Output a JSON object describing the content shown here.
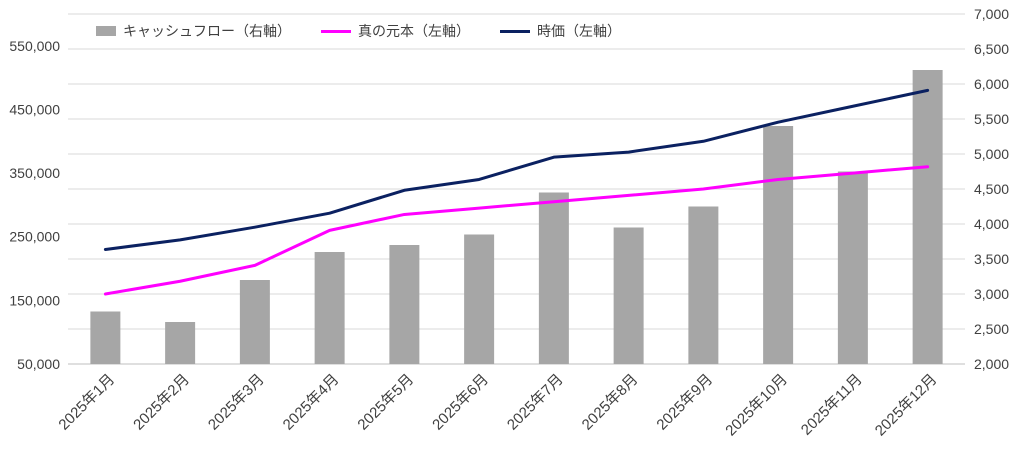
{
  "chart_data": {
    "type": "combo",
    "title": "",
    "categories": [
      "2025年1月",
      "2025年2月",
      "2025年3月",
      "2025年4月",
      "2025年5月",
      "2025年6月",
      "2025年7月",
      "2025年8月",
      "2025年9月",
      "2025年10月",
      "2025年11月",
      "2025年12月"
    ],
    "series": [
      {
        "name": "キャッシュフロー（右軸）",
        "type": "bar",
        "axis": "right",
        "color": "#a6a6a6",
        "values": [
          2750,
          2600,
          3200,
          3600,
          3700,
          3850,
          4450,
          3950,
          4250,
          5400,
          4750,
          6200
        ]
      },
      {
        "name": "真の元本（左軸）",
        "type": "line",
        "axis": "left",
        "color": "#ff00ff",
        "values": [
          160000,
          180000,
          205000,
          260000,
          285000,
          295000,
          305000,
          315000,
          325000,
          340000,
          350000,
          360000
        ]
      },
      {
        "name": "時価（左軸）",
        "type": "line",
        "axis": "left",
        "color": "#0b2161",
        "values": [
          230000,
          245000,
          265000,
          287000,
          323000,
          340000,
          375000,
          383000,
          400000,
          430000,
          455000,
          480000
        ]
      }
    ],
    "left_axis": {
      "min": 50000,
      "max": 600000,
      "tick_values": [
        550000,
        450000,
        350000,
        250000,
        150000,
        50000
      ],
      "tick_labels": [
        "550,000",
        "450,000",
        "350,000",
        "250,000",
        "150,000",
        "50,000"
      ]
    },
    "right_axis": {
      "min": 2000,
      "max": 7000,
      "tick_values": [
        7000,
        6500,
        6000,
        5500,
        5000,
        4500,
        4000,
        3500,
        3000,
        2500,
        2000
      ],
      "tick_labels": [
        "7,000",
        "6,500",
        "6,000",
        "5,500",
        "5,000",
        "4,500",
        "4,000",
        "3,500",
        "3,000",
        "2,500",
        "2,000"
      ]
    },
    "legend_position": "top",
    "grid": true,
    "gridline_color": "#d9d9d9",
    "axis_line_color": "#bfbfbf",
    "label_color": "#404040"
  }
}
